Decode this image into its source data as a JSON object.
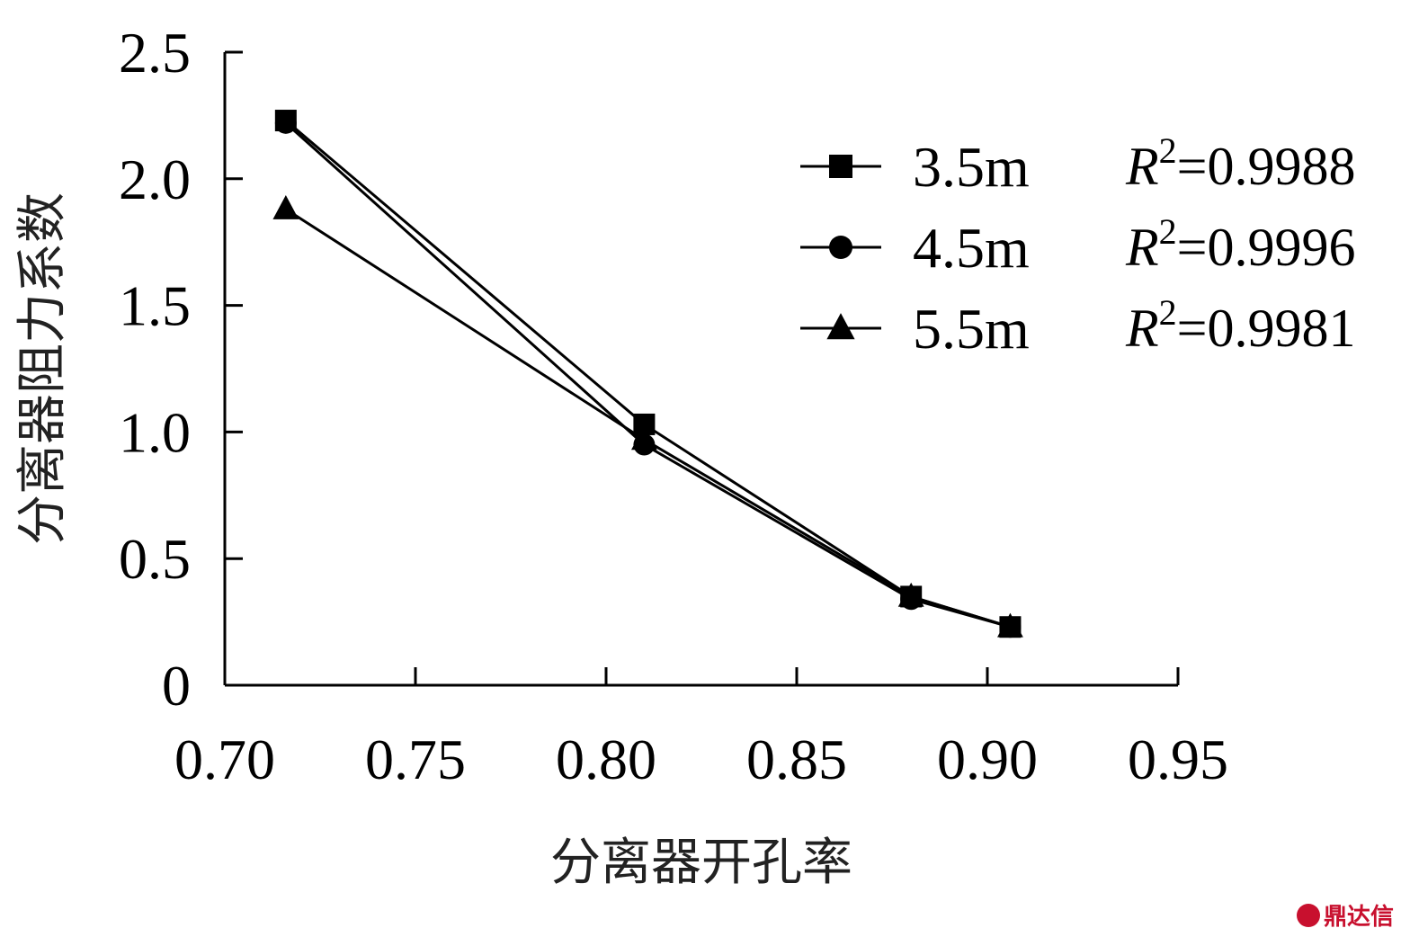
{
  "chart_data": {
    "type": "line",
    "xlabel": "分离器开孔率",
    "ylabel": "分离器阻力系数",
    "xlim": [
      0.7,
      0.95
    ],
    "ylim": [
      0,
      2.5
    ],
    "x_ticks": [
      "0.70",
      "0.75",
      "0.80",
      "0.85",
      "0.90",
      "0.95"
    ],
    "y_ticks": [
      "0",
      "0.5",
      "1.0",
      "1.5",
      "2.0",
      "2.5"
    ],
    "grid": false,
    "legend_position": "top-right",
    "series": [
      {
        "name": "3.5m",
        "r2_prefix": "R",
        "r2_sup": "2",
        "r2_value": "=0.9988",
        "marker": "square",
        "points": [
          [
            0.716,
            2.23
          ],
          [
            0.81,
            1.03
          ],
          [
            0.88,
            0.35
          ],
          [
            0.906,
            0.23
          ]
        ]
      },
      {
        "name": "4.5m",
        "r2_prefix": "R",
        "r2_sup": "2",
        "r2_value": "=0.9996",
        "marker": "circle",
        "points": [
          [
            0.716,
            2.22
          ],
          [
            0.81,
            0.95
          ],
          [
            0.88,
            0.34
          ],
          [
            0.906,
            0.23
          ]
        ]
      },
      {
        "name": "5.5m",
        "r2_prefix": "R",
        "r2_sup": "2",
        "r2_value": "=0.9981",
        "marker": "triangle",
        "points": [
          [
            0.716,
            1.88
          ],
          [
            0.81,
            0.97
          ],
          [
            0.88,
            0.35
          ],
          [
            0.906,
            0.23
          ]
        ]
      }
    ]
  },
  "watermark": {
    "text": "鼎达信"
  }
}
